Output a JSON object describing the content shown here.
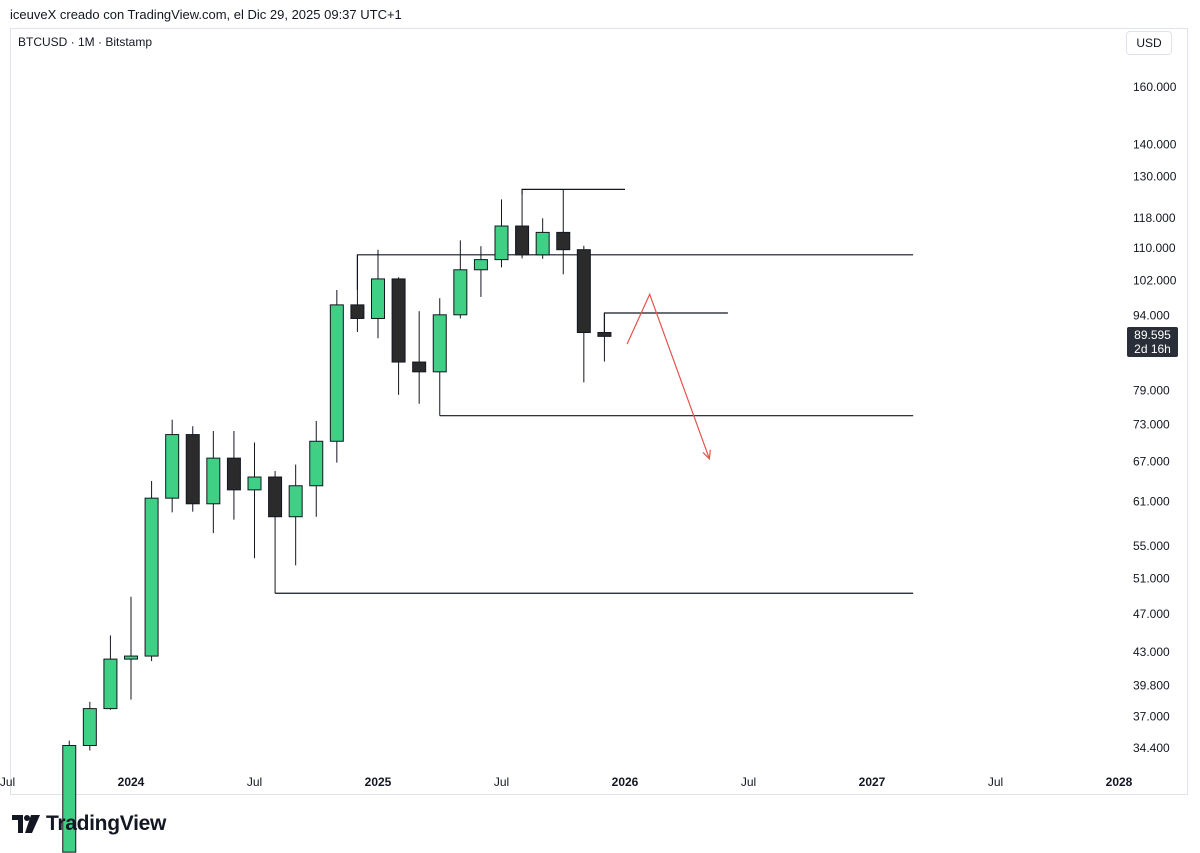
{
  "header": {
    "attribution": "iceuveX creado con TradingView.com, el Dic 29, 2025 09:37 UTC+1"
  },
  "symbol_info": "BTCUSD · 1M · Bitstamp",
  "currency_button": "USD",
  "last_price": {
    "value": "89.595",
    "countdown": "2d 16h"
  },
  "footer": {
    "brand": "TradingView"
  },
  "colors": {
    "up": "#3fcf85",
    "down": "#2b2b2b",
    "line": "#131722",
    "arrow": "#e5534b"
  },
  "chart_data": {
    "type": "candlestick",
    "title": "BTCUSD · 1M · Bitstamp",
    "y_scale": "log",
    "y_ticks": [
      {
        "value": 160000,
        "label": "160.000"
      },
      {
        "value": 140000,
        "label": "140.000"
      },
      {
        "value": 130000,
        "label": "130.000"
      },
      {
        "value": 118000,
        "label": "118.000"
      },
      {
        "value": 110000,
        "label": "110.000"
      },
      {
        "value": 102000,
        "label": "102.000"
      },
      {
        "value": 94000,
        "label": "94.000"
      },
      {
        "value": 79000,
        "label": "79.000"
      },
      {
        "value": 73000,
        "label": "73.000"
      },
      {
        "value": 67000,
        "label": "67.000"
      },
      {
        "value": 61000,
        "label": "61.000"
      },
      {
        "value": 55000,
        "label": "55.000"
      },
      {
        "value": 51000,
        "label": "51.000"
      },
      {
        "value": 47000,
        "label": "47.000"
      },
      {
        "value": 43000,
        "label": "43.000"
      },
      {
        "value": 39800,
        "label": "39.800"
      },
      {
        "value": 37000,
        "label": "37.000"
      },
      {
        "value": 34400,
        "label": "34.400"
      }
    ],
    "x_ticks": [
      {
        "month": "2023-07",
        "label": "Jul"
      },
      {
        "month": "2024-01",
        "label": "2024"
      },
      {
        "month": "2024-07",
        "label": "Jul"
      },
      {
        "month": "2025-01",
        "label": "2025"
      },
      {
        "month": "2025-07",
        "label": "Jul"
      },
      {
        "month": "2026-01",
        "label": "2026"
      },
      {
        "month": "2026-07",
        "label": "Jul"
      },
      {
        "month": "2027-01",
        "label": "2027"
      },
      {
        "month": "2027-07",
        "label": "Jul"
      },
      {
        "month": "2028-01",
        "label": "2028"
      }
    ],
    "candles": [
      {
        "month": "2023-10",
        "open": 27000,
        "high": 35000,
        "low": 27000,
        "close": 34600
      },
      {
        "month": "2023-11",
        "open": 34600,
        "high": 38300,
        "low": 34200,
        "close": 37700
      },
      {
        "month": "2023-12",
        "open": 37700,
        "high": 44700,
        "low": 37600,
        "close": 42300
      },
      {
        "month": "2024-01",
        "open": 42300,
        "high": 48900,
        "low": 38500,
        "close": 42600
      },
      {
        "month": "2024-02",
        "open": 42600,
        "high": 64000,
        "low": 42100,
        "close": 61500
      },
      {
        "month": "2024-03",
        "open": 61500,
        "high": 73800,
        "low": 59500,
        "close": 71300
      },
      {
        "month": "2024-04",
        "open": 71300,
        "high": 72700,
        "low": 59600,
        "close": 60700
      },
      {
        "month": "2024-05",
        "open": 60700,
        "high": 71900,
        "low": 56700,
        "close": 67500
      },
      {
        "month": "2024-06",
        "open": 67500,
        "high": 71900,
        "low": 58500,
        "close": 62700
      },
      {
        "month": "2024-07",
        "open": 62700,
        "high": 70000,
        "low": 53500,
        "close": 64600
      },
      {
        "month": "2024-08",
        "open": 64600,
        "high": 65500,
        "low": 49300,
        "close": 58900
      },
      {
        "month": "2024-09",
        "open": 58900,
        "high": 66500,
        "low": 52600,
        "close": 63300
      },
      {
        "month": "2024-10",
        "open": 63300,
        "high": 73600,
        "low": 58900,
        "close": 70200
      },
      {
        "month": "2024-11",
        "open": 70200,
        "high": 99800,
        "low": 66800,
        "close": 96400
      },
      {
        "month": "2024-12",
        "open": 96400,
        "high": 108300,
        "low": 90500,
        "close": 93400
      },
      {
        "month": "2025-01",
        "open": 93400,
        "high": 109600,
        "low": 89200,
        "close": 102400
      },
      {
        "month": "2025-02",
        "open": 102400,
        "high": 102800,
        "low": 78200,
        "close": 84400
      },
      {
        "month": "2025-03",
        "open": 84400,
        "high": 95000,
        "low": 76600,
        "close": 82500
      },
      {
        "month": "2025-04",
        "open": 82500,
        "high": 97900,
        "low": 74500,
        "close": 94200
      },
      {
        "month": "2025-05",
        "open": 94200,
        "high": 112000,
        "low": 93400,
        "close": 104600
      },
      {
        "month": "2025-06",
        "open": 104600,
        "high": 110500,
        "low": 98200,
        "close": 107100
      },
      {
        "month": "2025-07",
        "open": 107100,
        "high": 123200,
        "low": 105200,
        "close": 115800
      },
      {
        "month": "2025-08",
        "open": 115800,
        "high": 124500,
        "low": 107400,
        "close": 108300
      },
      {
        "month": "2025-09",
        "open": 108300,
        "high": 117900,
        "low": 107300,
        "close": 114100
      },
      {
        "month": "2025-10",
        "open": 114100,
        "high": 126100,
        "low": 103500,
        "close": 109600
      },
      {
        "month": "2025-11",
        "open": 109600,
        "high": 110600,
        "low": 80500,
        "close": 90400
      },
      {
        "month": "2025-12",
        "open": 90400,
        "high": 94600,
        "low": 84500,
        "close": 89595
      }
    ],
    "drawings": [
      {
        "kind": "level",
        "from": "2025-08",
        "to": "2026-01",
        "value": 126100,
        "tick_to": 124500
      },
      {
        "kind": "level",
        "from": "2024-12",
        "to": "2027-03",
        "value": 108300,
        "tick_to": 99800
      },
      {
        "kind": "level",
        "from": "2025-12",
        "to": "2026-06",
        "value": 94600,
        "tick_to": 90400
      },
      {
        "kind": "level",
        "from": "2025-04",
        "to": "2027-03",
        "value": 74500
      },
      {
        "kind": "level",
        "from": "2024-08",
        "to": "2027-03",
        "value": 49300
      }
    ],
    "projection": {
      "points": [
        {
          "month": "2026-01.1",
          "value": 88000
        },
        {
          "month": "2026-02.2",
          "value": 98800
        },
        {
          "month": "2026-05.1",
          "value": 67400
        }
      ]
    }
  }
}
